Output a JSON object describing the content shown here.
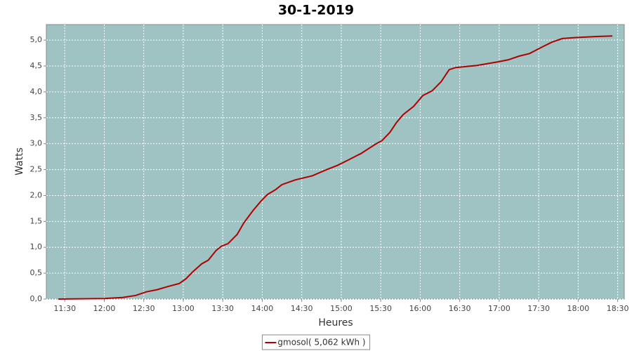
{
  "chart_data": {
    "type": "line",
    "title": "30-1-2019",
    "x_label": "Heures",
    "y_label": "Watts",
    "x": [
      "11:25",
      "12:00",
      "12:14",
      "12:24",
      "12:32",
      "12:40",
      "12:48",
      "12:57",
      "13:02",
      "13:07",
      "13:14",
      "13:19",
      "13:25",
      "13:29",
      "13:34",
      "13:41",
      "13:46",
      "13:53",
      "13:59",
      "14:04",
      "14:10",
      "14:15",
      "14:25",
      "14:38",
      "14:49",
      "14:57",
      "15:05",
      "15:15",
      "15:26",
      "15:31",
      "15:37",
      "15:42",
      "15:47",
      "15:55",
      "16:02",
      "16:09",
      "16:16",
      "16:22",
      "16:27",
      "16:43",
      "16:59",
      "17:07",
      "17:15",
      "17:23",
      "17:32",
      "17:40",
      "17:48",
      "17:58",
      "18:14",
      "18:26"
    ],
    "series": [
      {
        "name": "gmosol( 5,062 kWh )",
        "color": "#b00000",
        "values": [
          0,
          0.01,
          0.03,
          0.07,
          0.14,
          0.18,
          0.24,
          0.3,
          0.39,
          0.52,
          0.68,
          0.75,
          0.94,
          1.02,
          1.07,
          1.25,
          1.47,
          1.71,
          1.89,
          2.02,
          2.11,
          2.21,
          2.3,
          2.38,
          2.5,
          2.58,
          2.68,
          2.81,
          2.99,
          3.06,
          3.22,
          3.41,
          3.56,
          3.72,
          3.93,
          4.02,
          4.2,
          4.43,
          4.47,
          4.51,
          4.58,
          4.62,
          4.69,
          4.74,
          4.86,
          4.96,
          5.03,
          5.05,
          5.07,
          5.08
        ]
      }
    ],
    "xlim": [
      "11:16",
      "18:35"
    ],
    "xticks": [
      "11:30",
      "12:00",
      "12:30",
      "13:00",
      "13:30",
      "14:00",
      "14:30",
      "15:00",
      "15:30",
      "16:00",
      "16:30",
      "17:00",
      "17:30",
      "18:00",
      "18:30"
    ],
    "ylim": [
      0,
      5.3
    ],
    "yticks": [
      {
        "value": 0,
        "label": "0,0"
      },
      {
        "value": 0.5,
        "label": "0,5"
      },
      {
        "value": 1,
        "label": "1,0"
      },
      {
        "value": 1.5,
        "label": "1,5"
      },
      {
        "value": 2,
        "label": "2,0"
      },
      {
        "value": 2.5,
        "label": "2,5"
      },
      {
        "value": 3,
        "label": "3,0"
      },
      {
        "value": 3.5,
        "label": "3,5"
      },
      {
        "value": 4,
        "label": "4,0"
      },
      {
        "value": 4.5,
        "label": "4,5"
      },
      {
        "value": 5,
        "label": "5,0"
      }
    ],
    "grid": true,
    "background": "#9fc2c2",
    "legend": "bottom"
  }
}
